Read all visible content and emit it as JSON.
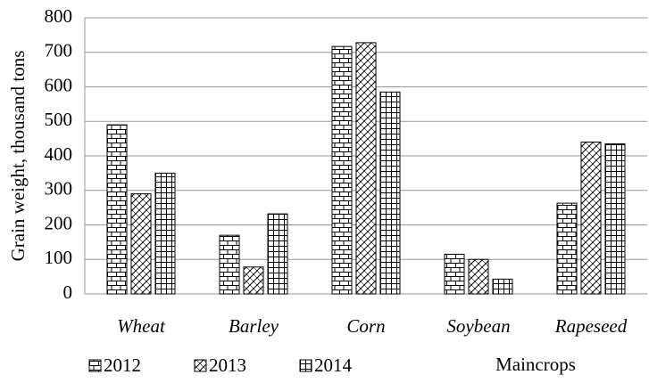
{
  "chart_data": {
    "type": "bar",
    "y_label": "Grain weight, thousand tons",
    "x_label": "Maincrops",
    "categories": [
      "Wheat",
      "Barley",
      "Corn",
      "Soybean",
      "Rapeseed"
    ],
    "series": [
      {
        "name": "2012",
        "color": "#000000",
        "values": [
          490,
          170,
          717,
          115,
          263
        ]
      },
      {
        "name": "2013",
        "color": "#000000",
        "values": [
          290,
          78,
          728,
          100,
          440
        ]
      },
      {
        "name": "2014",
        "color": "#000000",
        "values": [
          350,
          232,
          585,
          43,
          435
        ]
      }
    ],
    "ylim": [
      0,
      800
    ],
    "yticks": [
      0,
      100,
      200,
      300,
      400,
      500,
      600,
      700,
      800
    ],
    "grid": true
  }
}
